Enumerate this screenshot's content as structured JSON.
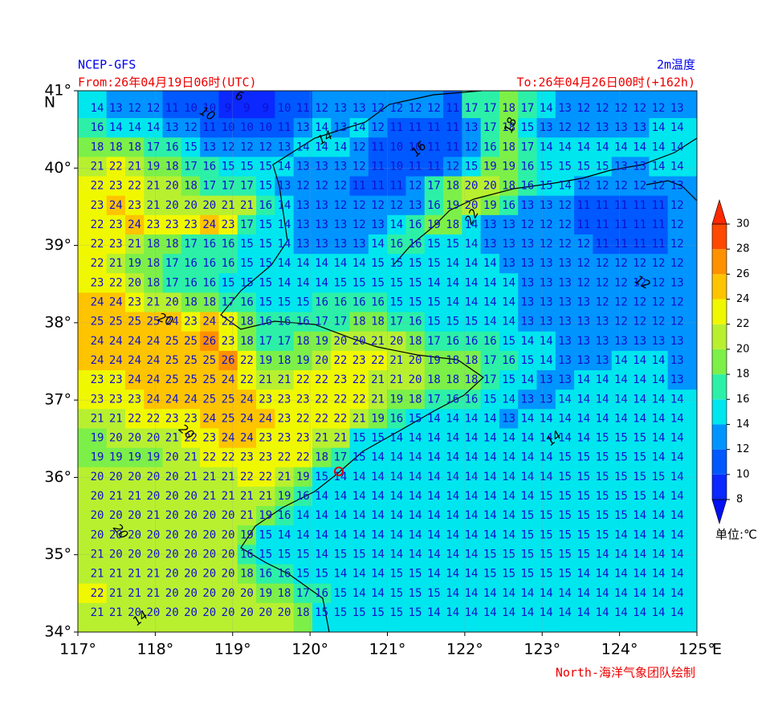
{
  "chart_data": {
    "type": "map",
    "source": "NCEP-GFS",
    "title": "2m温度",
    "from": "From:26年04月19日06时(UTC)",
    "to": "To:26年04月26日00时(+162h)",
    "credit": "North-海洋气象团队绘制",
    "xlim": [
      117,
      125
    ],
    "ylim": [
      34,
      41
    ],
    "xticks": [
      {
        "value": 117,
        "label": "117°"
      },
      {
        "value": 118,
        "label": "118°"
      },
      {
        "value": 119,
        "label": "119°"
      },
      {
        "value": 120,
        "label": "120°"
      },
      {
        "value": 121,
        "label": "121°"
      },
      {
        "value": 122,
        "label": "122°"
      },
      {
        "value": 123,
        "label": "123°"
      },
      {
        "value": 124,
        "label": "124°"
      },
      {
        "value": 125,
        "label": "125°"
      }
    ],
    "yticks": [
      {
        "value": 34,
        "label": "34°"
      },
      {
        "value": 35,
        "label": "35°"
      },
      {
        "value": 36,
        "label": "36°"
      },
      {
        "value": 37,
        "label": "37°"
      },
      {
        "value": 38,
        "label": "38°"
      },
      {
        "value": 39,
        "label": "39°"
      },
      {
        "value": 40,
        "label": "40°"
      },
      {
        "value": 41,
        "label": "41°"
      }
    ],
    "lon_unit": "E",
    "lat_unit": "N",
    "grid": true,
    "colorbar": {
      "ticks": [
        8,
        10,
        12,
        14,
        16,
        18,
        20,
        22,
        24,
        26,
        28,
        30
      ],
      "unit": "单位:℃",
      "colors": [
        "#0a28ff",
        "#0058ff",
        "#0094ff",
        "#00e6ee",
        "#2cf0a8",
        "#7cf048",
        "#b8f030",
        "#f0f800",
        "#ffc400",
        "#ff9000",
        "#ff4800"
      ],
      "under": "#0010f0",
      "over": "#ff2800"
    },
    "contour_labels": [
      "6",
      "10",
      "14",
      "16",
      "18",
      "22",
      "20",
      "12",
      "14",
      "20",
      "20",
      "14"
    ],
    "temperature_grid": [
      [
        14,
        13,
        12,
        12,
        11,
        10,
        10,
        9,
        9,
        9,
        10,
        11,
        12,
        13,
        13,
        12,
        12,
        12,
        12,
        11,
        17,
        17,
        18,
        17,
        14,
        13,
        12,
        12,
        12,
        12,
        12,
        13
      ],
      [
        16,
        14,
        14,
        14,
        13,
        12,
        11,
        10,
        10,
        10,
        11,
        13,
        14,
        13,
        14,
        12,
        11,
        11,
        11,
        11,
        13,
        17,
        18,
        15,
        13,
        12,
        12,
        13,
        13,
        13,
        14,
        14
      ],
      [
        18,
        18,
        18,
        17,
        16,
        15,
        13,
        12,
        12,
        12,
        13,
        14,
        14,
        14,
        12,
        11,
        10,
        10,
        11,
        11,
        12,
        16,
        18,
        17,
        14,
        14,
        14,
        14,
        14,
        14,
        14,
        14
      ],
      [
        21,
        22,
        21,
        19,
        18,
        17,
        16,
        15,
        15,
        15,
        14,
        13,
        13,
        13,
        12,
        11,
        10,
        11,
        11,
        12,
        15,
        19,
        19,
        16,
        15,
        15,
        15,
        15,
        13,
        13,
        14,
        14
      ],
      [
        22,
        23,
        22,
        21,
        20,
        18,
        17,
        17,
        17,
        15,
        13,
        12,
        12,
        12,
        11,
        11,
        11,
        12,
        17,
        18,
        20,
        20,
        18,
        16,
        15,
        14,
        12,
        12,
        12,
        12,
        12,
        13
      ],
      [
        23,
        24,
        23,
        21,
        20,
        20,
        20,
        21,
        21,
        16,
        14,
        13,
        13,
        12,
        12,
        12,
        12,
        13,
        16,
        19,
        20,
        19,
        16,
        13,
        13,
        12,
        11,
        11,
        11,
        11,
        11,
        12
      ],
      [
        22,
        23,
        24,
        23,
        23,
        23,
        24,
        23,
        17,
        15,
        14,
        13,
        13,
        13,
        12,
        13,
        14,
        16,
        19,
        18,
        14,
        13,
        13,
        12,
        12,
        12,
        11,
        11,
        11,
        11,
        11,
        12
      ],
      [
        22,
        23,
        21,
        18,
        18,
        17,
        16,
        16,
        15,
        15,
        14,
        13,
        13,
        13,
        13,
        14,
        16,
        16,
        15,
        15,
        14,
        13,
        13,
        13,
        12,
        12,
        12,
        11,
        11,
        11,
        11,
        12
      ],
      [
        22,
        21,
        19,
        18,
        17,
        16,
        16,
        16,
        15,
        15,
        14,
        14,
        14,
        14,
        14,
        15,
        15,
        15,
        15,
        14,
        14,
        14,
        13,
        13,
        13,
        13,
        12,
        12,
        12,
        12,
        12,
        12
      ],
      [
        23,
        22,
        20,
        18,
        17,
        16,
        16,
        15,
        15,
        15,
        14,
        14,
        14,
        15,
        15,
        15,
        15,
        15,
        14,
        14,
        14,
        14,
        14,
        13,
        13,
        13,
        12,
        12,
        12,
        12,
        12,
        13
      ],
      [
        24,
        24,
        23,
        21,
        20,
        18,
        18,
        17,
        16,
        15,
        15,
        15,
        16,
        16,
        16,
        16,
        15,
        15,
        15,
        14,
        14,
        14,
        14,
        13,
        13,
        13,
        13,
        12,
        12,
        12,
        12,
        12
      ],
      [
        25,
        25,
        25,
        25,
        24,
        23,
        24,
        22,
        18,
        16,
        16,
        16,
        17,
        17,
        18,
        18,
        17,
        16,
        15,
        15,
        15,
        14,
        14,
        13,
        13,
        13,
        13,
        13,
        12,
        12,
        12,
        12
      ],
      [
        24,
        24,
        24,
        24,
        25,
        25,
        26,
        23,
        18,
        17,
        17,
        18,
        19,
        20,
        20,
        21,
        20,
        18,
        17,
        16,
        16,
        16,
        15,
        14,
        14,
        13,
        13,
        13,
        13,
        13,
        13,
        13
      ],
      [
        24,
        24,
        24,
        24,
        25,
        25,
        25,
        26,
        22,
        19,
        18,
        19,
        20,
        22,
        23,
        22,
        21,
        20,
        19,
        18,
        18,
        17,
        16,
        15,
        14,
        13,
        13,
        13,
        14,
        14,
        14,
        13
      ],
      [
        23,
        23,
        24,
        24,
        25,
        25,
        25,
        24,
        22,
        21,
        21,
        22,
        22,
        23,
        22,
        21,
        21,
        20,
        18,
        18,
        18,
        17,
        15,
        14,
        13,
        13,
        14,
        14,
        14,
        14,
        14,
        13
      ],
      [
        23,
        23,
        23,
        24,
        24,
        24,
        25,
        25,
        24,
        23,
        23,
        23,
        22,
        22,
        22,
        21,
        19,
        18,
        17,
        16,
        16,
        15,
        14,
        13,
        13,
        14,
        14,
        14,
        14,
        14,
        14,
        14
      ],
      [
        21,
        21,
        22,
        22,
        23,
        23,
        24,
        25,
        24,
        24,
        23,
        22,
        22,
        22,
        21,
        19,
        16,
        15,
        14,
        14,
        14,
        14,
        13,
        14,
        14,
        14,
        14,
        14,
        14,
        14,
        14,
        14
      ],
      [
        19,
        20,
        20,
        20,
        21,
        22,
        23,
        24,
        24,
        23,
        23,
        23,
        21,
        21,
        15,
        15,
        14,
        14,
        14,
        14,
        14,
        14,
        14,
        14,
        14,
        14,
        14,
        15,
        15,
        15,
        14,
        14
      ],
      [
        19,
        19,
        19,
        19,
        20,
        21,
        22,
        22,
        23,
        23,
        22,
        22,
        18,
        17,
        15,
        14,
        14,
        14,
        14,
        14,
        14,
        14,
        14,
        14,
        14,
        15,
        15,
        15,
        15,
        15,
        14,
        14
      ],
      [
        20,
        20,
        20,
        20,
        20,
        21,
        21,
        21,
        22,
        22,
        21,
        19,
        15,
        14,
        14,
        14,
        14,
        14,
        14,
        14,
        14,
        14,
        14,
        14,
        14,
        15,
        15,
        15,
        15,
        15,
        15,
        14
      ],
      [
        20,
        21,
        21,
        20,
        20,
        20,
        21,
        21,
        21,
        21,
        19,
        16,
        14,
        14,
        14,
        14,
        14,
        14,
        14,
        14,
        14,
        14,
        14,
        14,
        15,
        15,
        15,
        15,
        15,
        15,
        14,
        14
      ],
      [
        20,
        20,
        20,
        21,
        20,
        20,
        20,
        20,
        21,
        19,
        16,
        14,
        14,
        14,
        14,
        14,
        14,
        14,
        14,
        14,
        14,
        14,
        14,
        15,
        15,
        15,
        15,
        15,
        15,
        14,
        14,
        14
      ],
      [
        20,
        20,
        20,
        20,
        20,
        20,
        20,
        20,
        19,
        15,
        14,
        14,
        14,
        14,
        14,
        14,
        14,
        14,
        14,
        14,
        14,
        14,
        14,
        15,
        15,
        15,
        15,
        15,
        14,
        14,
        14,
        14
      ],
      [
        21,
        20,
        20,
        20,
        20,
        20,
        20,
        20,
        16,
        15,
        15,
        15,
        14,
        15,
        15,
        14,
        14,
        14,
        14,
        14,
        14,
        15,
        15,
        15,
        15,
        15,
        15,
        14,
        14,
        14,
        14,
        14
      ],
      [
        21,
        21,
        21,
        21,
        20,
        20,
        20,
        20,
        18,
        16,
        16,
        15,
        15,
        14,
        14,
        14,
        15,
        15,
        14,
        14,
        14,
        15,
        15,
        15,
        15,
        15,
        14,
        14,
        14,
        14,
        14,
        14
      ],
      [
        22,
        21,
        21,
        21,
        20,
        20,
        20,
        20,
        20,
        19,
        18,
        17,
        16,
        15,
        14,
        14,
        15,
        15,
        15,
        14,
        14,
        14,
        14,
        14,
        14,
        14,
        14,
        14,
        14,
        14,
        14,
        14
      ],
      [
        21,
        21,
        20,
        20,
        20,
        20,
        20,
        20,
        20,
        20,
        20,
        18,
        15,
        15,
        15,
        15,
        15,
        15,
        14,
        14,
        14,
        14,
        14,
        14,
        14,
        14,
        14,
        14,
        14,
        14,
        14,
        14
      ]
    ]
  }
}
